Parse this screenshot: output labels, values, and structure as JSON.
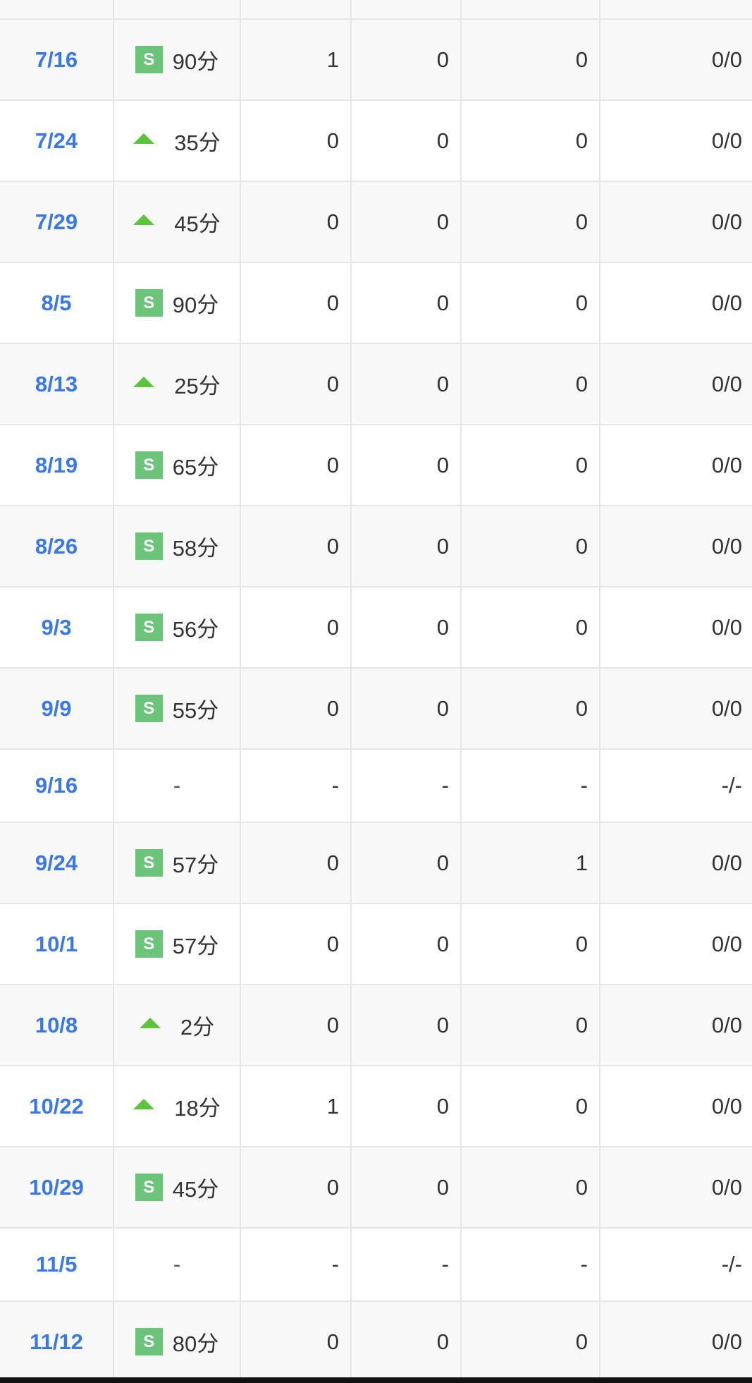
{
  "rows": [
    {
      "date": "7/16",
      "status": "S",
      "minutes": "90分",
      "c1": "1",
      "c2": "0",
      "c3": "0",
      "c4": "0/0"
    },
    {
      "date": "7/24",
      "status": "sub",
      "minutes": "35分",
      "c1": "0",
      "c2": "0",
      "c3": "0",
      "c4": "0/0"
    },
    {
      "date": "7/29",
      "status": "sub",
      "minutes": "45分",
      "c1": "0",
      "c2": "0",
      "c3": "0",
      "c4": "0/0"
    },
    {
      "date": "8/5",
      "status": "S",
      "minutes": "90分",
      "c1": "0",
      "c2": "0",
      "c3": "0",
      "c4": "0/0"
    },
    {
      "date": "8/13",
      "status": "sub",
      "minutes": "25分",
      "c1": "0",
      "c2": "0",
      "c3": "0",
      "c4": "0/0"
    },
    {
      "date": "8/19",
      "status": "S",
      "minutes": "65分",
      "c1": "0",
      "c2": "0",
      "c3": "0",
      "c4": "0/0"
    },
    {
      "date": "8/26",
      "status": "S",
      "minutes": "58分",
      "c1": "0",
      "c2": "0",
      "c3": "0",
      "c4": "0/0"
    },
    {
      "date": "9/3",
      "status": "S",
      "minutes": "56分",
      "c1": "0",
      "c2": "0",
      "c3": "0",
      "c4": "0/0"
    },
    {
      "date": "9/9",
      "status": "S",
      "minutes": "55分",
      "c1": "0",
      "c2": "0",
      "c3": "0",
      "c4": "0/0"
    },
    {
      "date": "9/16",
      "status": "none",
      "minutes": "-",
      "c1": "-",
      "c2": "-",
      "c3": "-",
      "c4": "-/-"
    },
    {
      "date": "9/24",
      "status": "S",
      "minutes": "57分",
      "c1": "0",
      "c2": "0",
      "c3": "1",
      "c4": "0/0"
    },
    {
      "date": "10/1",
      "status": "S",
      "minutes": "57分",
      "c1": "0",
      "c2": "0",
      "c3": "0",
      "c4": "0/0"
    },
    {
      "date": "10/8",
      "status": "sub",
      "minutes": "2分",
      "c1": "0",
      "c2": "0",
      "c3": "0",
      "c4": "0/0"
    },
    {
      "date": "10/22",
      "status": "sub",
      "minutes": "18分",
      "c1": "1",
      "c2": "0",
      "c3": "0",
      "c4": "0/0"
    },
    {
      "date": "10/29",
      "status": "S",
      "minutes": "45分",
      "c1": "0",
      "c2": "0",
      "c3": "0",
      "c4": "0/0"
    },
    {
      "date": "11/5",
      "status": "none",
      "minutes": "-",
      "c1": "-",
      "c2": "-",
      "c3": "-",
      "c4": "-/-"
    },
    {
      "date": "11/12",
      "status": "S",
      "minutes": "80分",
      "c1": "0",
      "c2": "0",
      "c3": "0",
      "c4": "0/0"
    }
  ],
  "badge_label": "S",
  "colors": {
    "date_link": "#3b78e7",
    "starter_badge": "#6cc37a",
    "sub_arrow": "#5cc43b"
  }
}
